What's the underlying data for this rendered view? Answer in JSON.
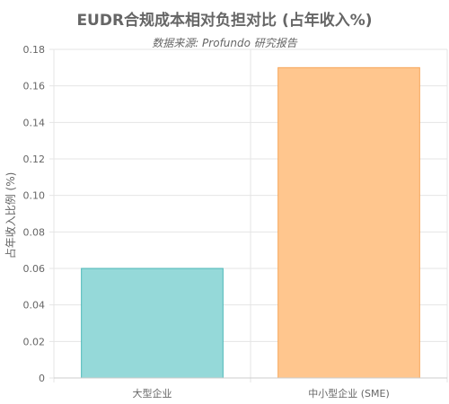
{
  "chart_data": {
    "type": "bar",
    "title": "EUDR合规成本相对负担对比 (占年收入%)",
    "subtitle": "数据来源: Profundo 研究报告",
    "xlabel": "",
    "ylabel": "占年收入比例 (%)",
    "ylim": [
      0,
      0.18
    ],
    "yticks": [
      "0",
      "0.02",
      "0.04",
      "0.06",
      "0.08",
      "0.10",
      "0.12",
      "0.14",
      "0.16",
      "0.18"
    ],
    "categories": [
      "大型企业",
      "中小型企业 (SME)"
    ],
    "values": [
      0.06,
      0.17
    ],
    "colors": {
      "bar_fill": [
        "#95d9d9",
        "#ffc68e"
      ],
      "bar_stroke": [
        "#4bb6b6",
        "#f7a659"
      ],
      "grid": "#e5e5e5"
    },
    "grid": true
  }
}
